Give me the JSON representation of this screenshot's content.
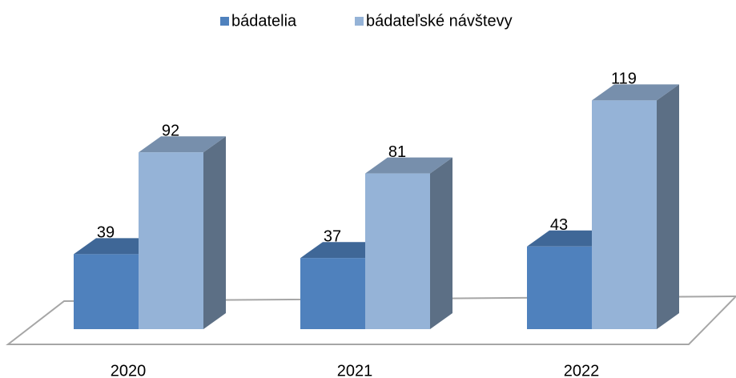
{
  "chart_data": {
    "type": "bar3d",
    "categories": [
      "2020",
      "2021",
      "2022"
    ],
    "series": [
      {
        "name": "bádatelia",
        "color": "#4f81bd",
        "values": [
          39,
          37,
          43
        ]
      },
      {
        "name": "bádateľské návštevy",
        "color": "#95b3d7",
        "values": [
          92,
          81,
          119
        ]
      }
    ],
    "legend": "top"
  }
}
